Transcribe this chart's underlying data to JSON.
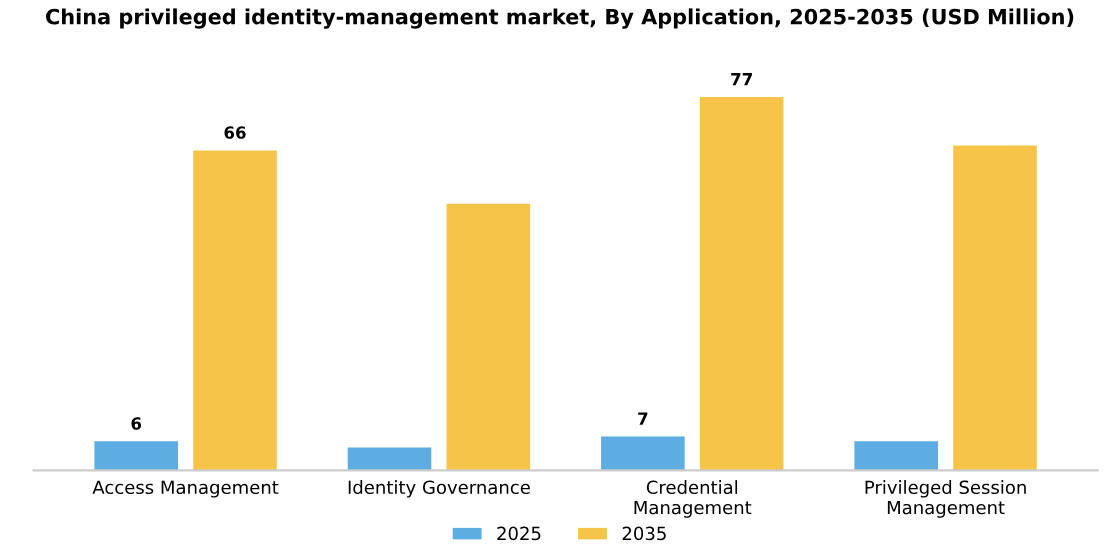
{
  "chart_data": {
    "type": "bar",
    "title": "China privileged identity-management market, By Application, 2025-2035 (USD Million)",
    "categories": [
      "Access Management",
      "Identity Governance",
      "Credential\nManagement",
      "Privileged Session\nManagement"
    ],
    "series": [
      {
        "name": "2025",
        "color": "#5dade2",
        "values": [
          6,
          4.7,
          7,
          6
        ],
        "value_labels": [
          "6",
          null,
          "7",
          null
        ]
      },
      {
        "name": "2035",
        "color": "#f7c44a",
        "values": [
          66,
          55,
          77,
          67
        ],
        "value_labels": [
          "66",
          null,
          "77",
          null
        ]
      }
    ],
    "legend": "bottom",
    "grid": false
  }
}
